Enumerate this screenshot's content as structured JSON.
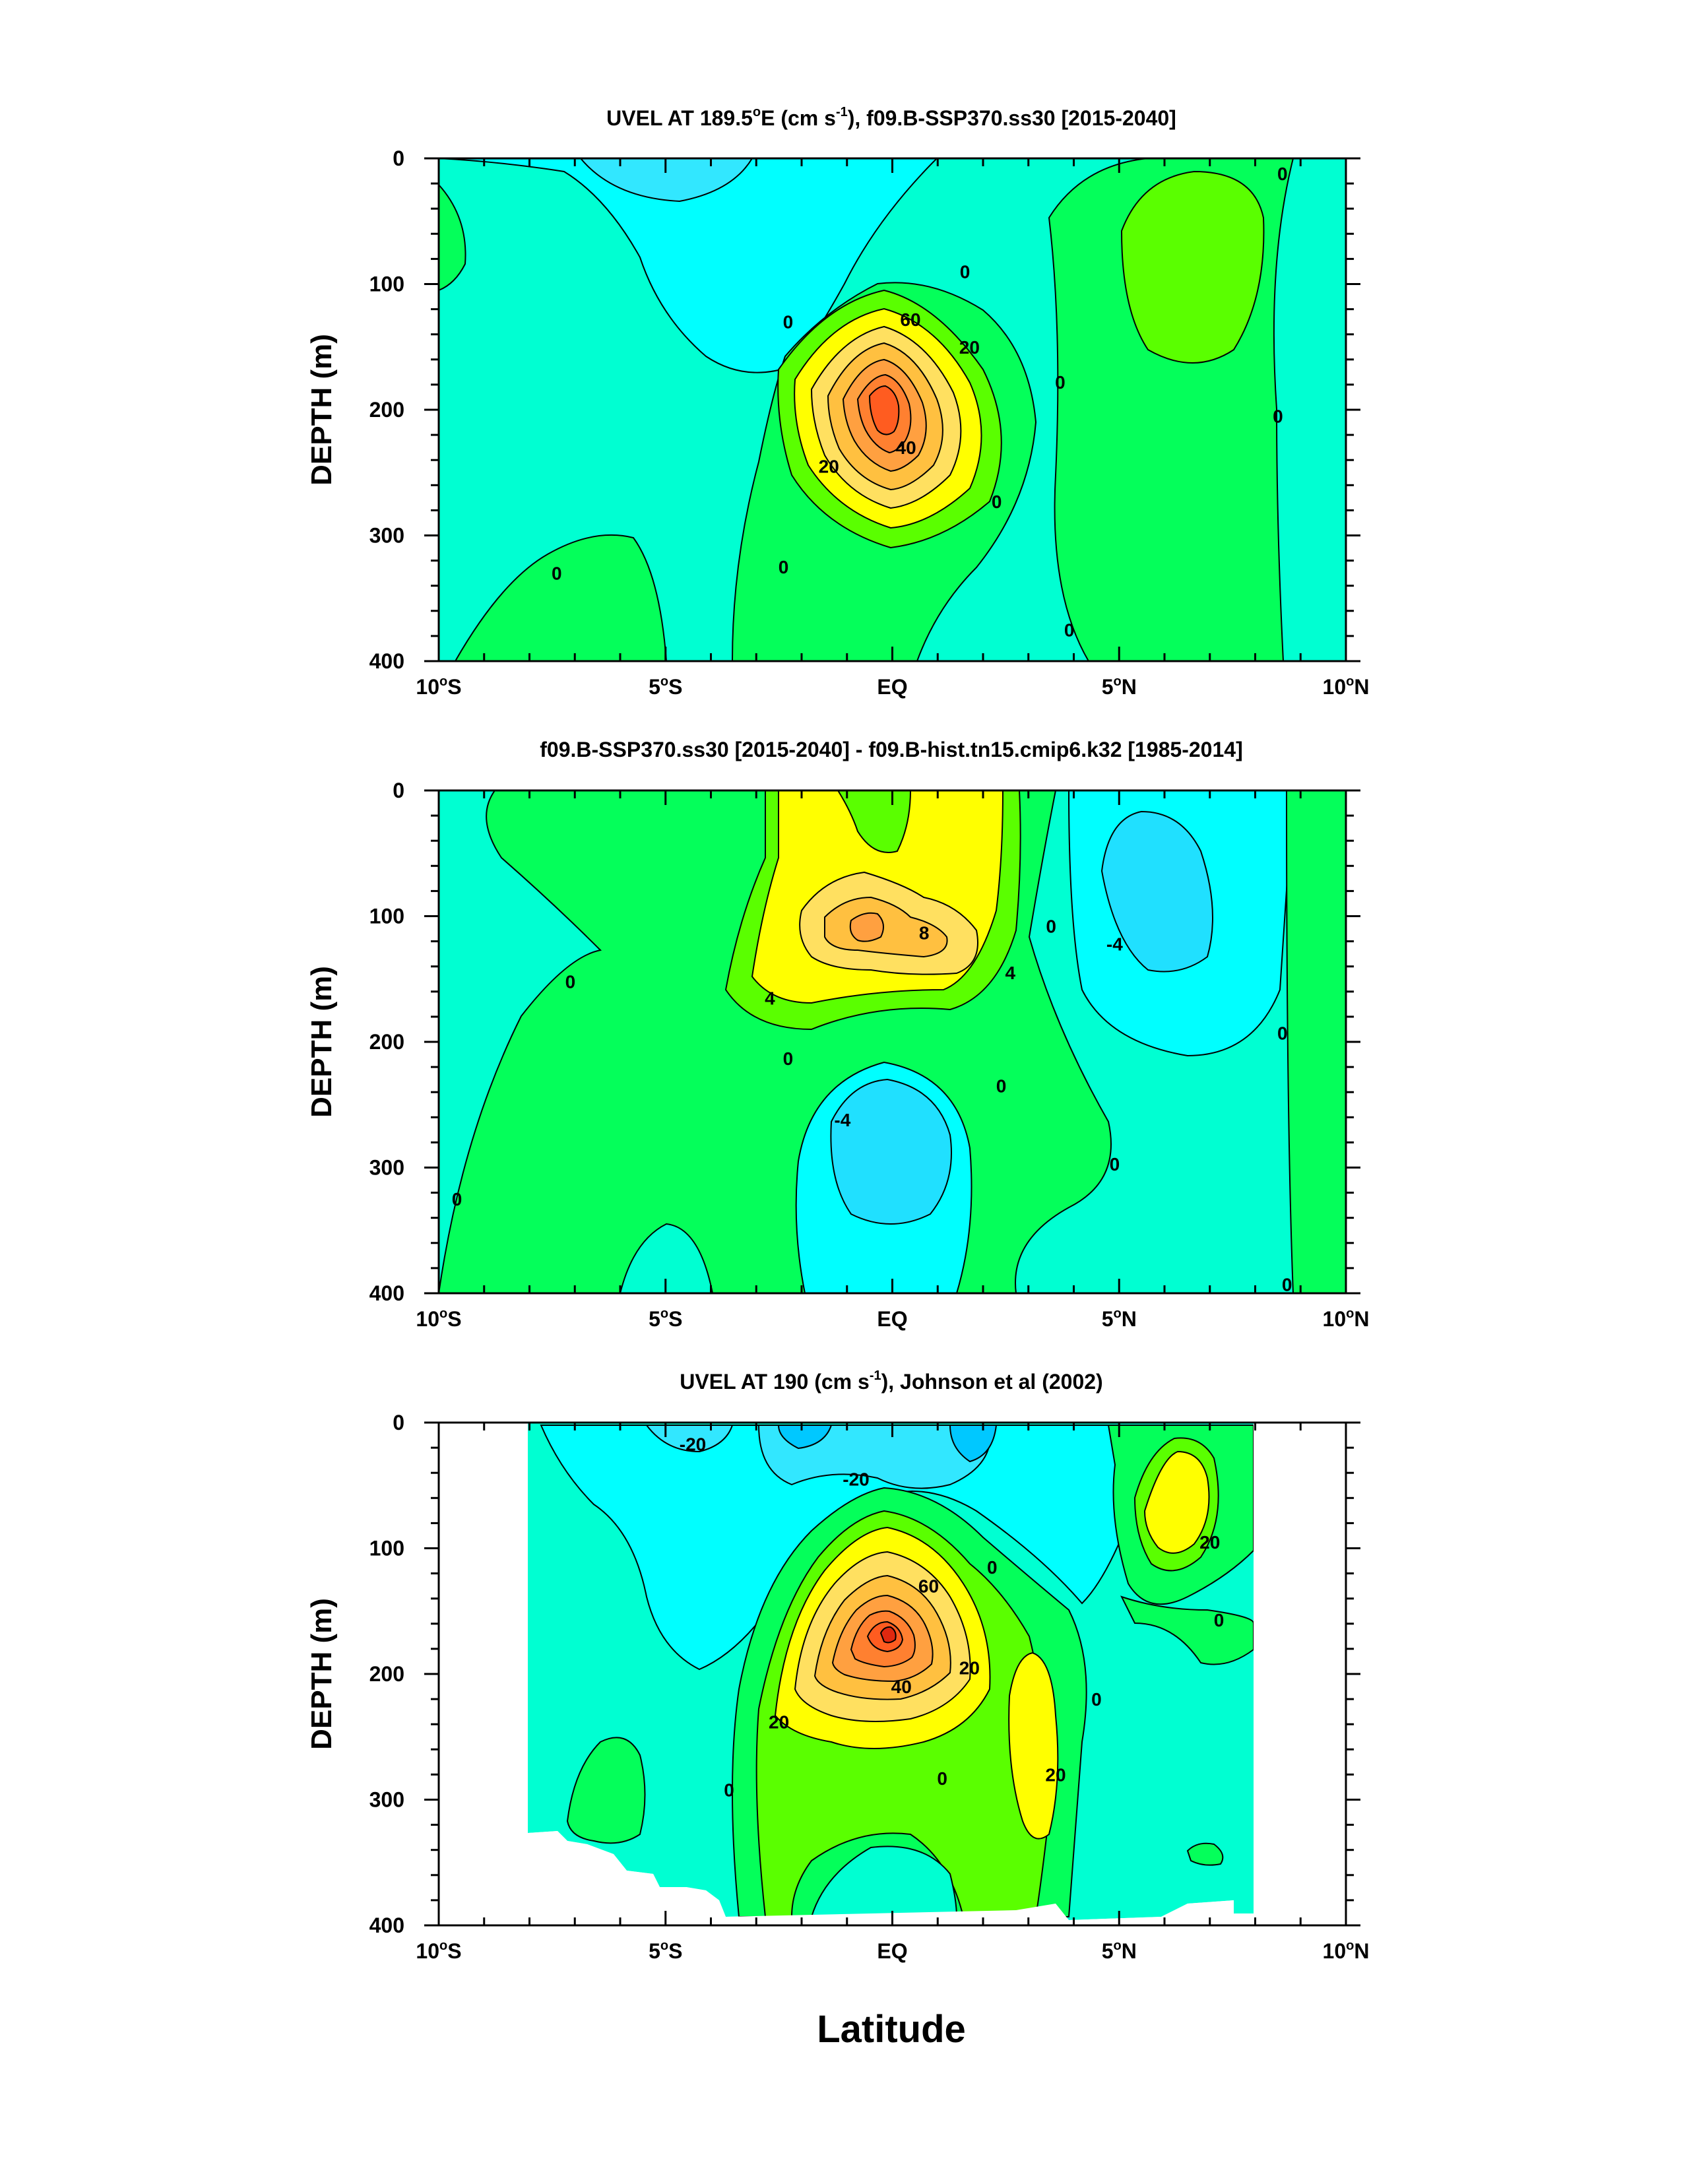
{
  "chart_data": [
    {
      "type": "contour",
      "title_main": "UVEL AT 189.5",
      "title_deg": "o",
      "title_mid": "E (cm s",
      "title_exp": "-1",
      "title_rest": "), f09.B-SSP370.ss30 [2015-2040]",
      "ylabel": "DEPTH (m)",
      "xlim": [
        -10,
        10
      ],
      "ylim": [
        0,
        400
      ],
      "x_ticks": [
        {
          "value": -10,
          "label": "10",
          "suffix": "S"
        },
        {
          "value": -5,
          "label": "5",
          "suffix": "S"
        },
        {
          "value": 0,
          "label": "EQ",
          "suffix": ""
        },
        {
          "value": 5,
          "label": "5",
          "suffix": "N"
        },
        {
          "value": 10,
          "label": "10",
          "suffix": "N"
        }
      ],
      "y_ticks": [
        0,
        100,
        200,
        300,
        400
      ],
      "contour_labels": [
        {
          "text": "0",
          "lat": -2.3,
          "depth": 130
        },
        {
          "text": "0",
          "lat": 1.6,
          "depth": 90
        },
        {
          "text": "0",
          "lat": 3.7,
          "depth": 178
        },
        {
          "text": "0",
          "lat": 8.6,
          "depth": 12
        },
        {
          "text": "0",
          "lat": 8.5,
          "depth": 205
        },
        {
          "text": "0",
          "lat": 2.3,
          "depth": 273
        },
        {
          "text": "0",
          "lat": -2.4,
          "depth": 325
        },
        {
          "text": "0",
          "lat": 3.9,
          "depth": 375
        },
        {
          "text": "0",
          "lat": -7.4,
          "depth": 330
        },
        {
          "text": "20",
          "lat": 1.7,
          "depth": 150
        },
        {
          "text": "20",
          "lat": -1.4,
          "depth": 245
        },
        {
          "text": "40",
          "lat": 0.3,
          "depth": 230
        },
        {
          "text": "60",
          "lat": 0.4,
          "depth": 128
        }
      ]
    },
    {
      "type": "contour",
      "title_main": "f09.B-SSP370.ss30 [2015-2040] - f09.B-hist.tn15.cmip6.k32 [1985-2014]",
      "ylabel": "DEPTH (m)",
      "xlim": [
        -10,
        10
      ],
      "ylim": [
        0,
        400
      ],
      "x_ticks": [
        {
          "value": -10,
          "label": "10",
          "suffix": "S"
        },
        {
          "value": -5,
          "label": "5",
          "suffix": "S"
        },
        {
          "value": 0,
          "label": "EQ",
          "suffix": ""
        },
        {
          "value": 5,
          "label": "5",
          "suffix": "N"
        },
        {
          "value": 10,
          "label": "10",
          "suffix": "N"
        }
      ],
      "y_ticks": [
        0,
        100,
        200,
        300,
        400
      ],
      "contour_labels": [
        {
          "text": "0",
          "lat": -7.1,
          "depth": 152
        },
        {
          "text": "0",
          "lat": -9.6,
          "depth": 325
        },
        {
          "text": "0",
          "lat": -2.3,
          "depth": 213
        },
        {
          "text": "0",
          "lat": 2.4,
          "depth": 235
        },
        {
          "text": "0",
          "lat": 3.5,
          "depth": 108
        },
        {
          "text": "0",
          "lat": 4.9,
          "depth": 297
        },
        {
          "text": "0",
          "lat": 8.6,
          "depth": 193
        },
        {
          "text": "0",
          "lat": 8.7,
          "depth": 393
        },
        {
          "text": "-4",
          "lat": 4.9,
          "depth": 122
        },
        {
          "text": "-4",
          "lat": -1.1,
          "depth": 262
        },
        {
          "text": "4",
          "lat": -2.7,
          "depth": 165
        },
        {
          "text": "4",
          "lat": 2.6,
          "depth": 145
        },
        {
          "text": "8",
          "lat": 0.7,
          "depth": 113
        }
      ]
    },
    {
      "type": "contour",
      "title_main": "UVEL AT 190 (cm s",
      "title_exp": "-1",
      "title_rest": "), Johnson et al (2002)",
      "ylabel": "DEPTH (m)",
      "xlabel": "Latitude",
      "xlim": [
        -10,
        10
      ],
      "ylim": [
        0,
        400
      ],
      "x_ticks": [
        {
          "value": -10,
          "label": "10",
          "suffix": "S"
        },
        {
          "value": -5,
          "label": "5",
          "suffix": "S"
        },
        {
          "value": 0,
          "label": "EQ",
          "suffix": ""
        },
        {
          "value": 5,
          "label": "5",
          "suffix": "N"
        },
        {
          "value": 10,
          "label": "10",
          "suffix": "N"
        }
      ],
      "y_ticks": [
        0,
        100,
        200,
        300,
        400
      ],
      "contour_labels": [
        {
          "text": "-20",
          "lat": -4.4,
          "depth": 17
        },
        {
          "text": "-20",
          "lat": -0.8,
          "depth": 45
        },
        {
          "text": "0",
          "lat": 2.2,
          "depth": 115
        },
        {
          "text": "0",
          "lat": 7.2,
          "depth": 157
        },
        {
          "text": "0",
          "lat": 4.5,
          "depth": 220
        },
        {
          "text": "0",
          "lat": 1.1,
          "depth": 283
        },
        {
          "text": "0",
          "lat": -3.6,
          "depth": 292
        },
        {
          "text": "20",
          "lat": 7.0,
          "depth": 95
        },
        {
          "text": "20",
          "lat": 1.7,
          "depth": 195
        },
        {
          "text": "20",
          "lat": -2.5,
          "depth": 238
        },
        {
          "text": "20",
          "lat": 3.6,
          "depth": 280
        },
        {
          "text": "40",
          "lat": 0.2,
          "depth": 210
        },
        {
          "text": "60",
          "lat": 0.8,
          "depth": 130
        }
      ]
    }
  ]
}
